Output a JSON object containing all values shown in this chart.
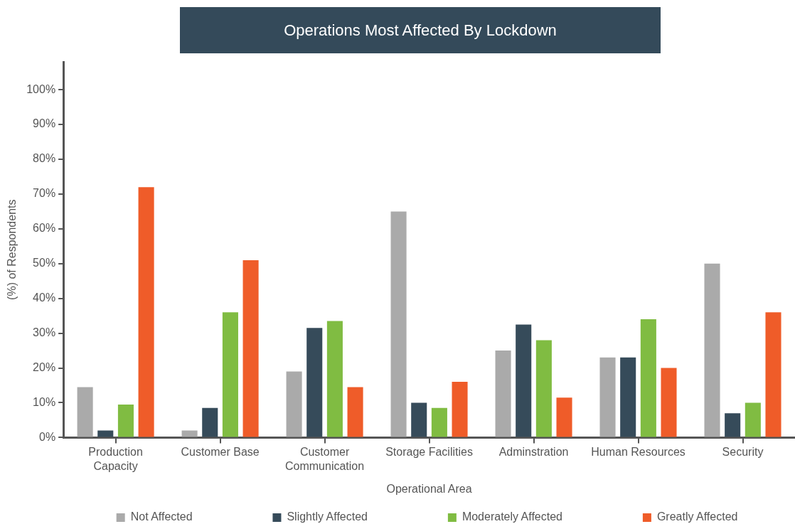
{
  "chart_data": {
    "type": "bar",
    "title": "Operations Most Affected By Lockdown",
    "xlabel": "Operational Area",
    "ylabel": "(%) of Respondents",
    "categories": [
      "Production Capacity",
      "Customer Base",
      "Customer Communication",
      "Storage Facilities",
      "Adminstration",
      "Human Resources",
      "Security"
    ],
    "series": [
      {
        "name": "Not Affected",
        "color": "#aaaaaa",
        "values": [
          14.5,
          2,
          19,
          65,
          25,
          23,
          50
        ]
      },
      {
        "name": "Slightly Affected",
        "color": "#364b5a",
        "values": [
          2,
          8.5,
          31.5,
          10,
          32.5,
          23,
          7
        ]
      },
      {
        "name": "Moderately Affected",
        "color": "#80bc42",
        "values": [
          9.5,
          36,
          33.5,
          8.5,
          28,
          34,
          10
        ]
      },
      {
        "name": "Greatly Affected",
        "color": "#ef5c29",
        "values": [
          72,
          51,
          14.5,
          16,
          11.5,
          20,
          36
        ]
      }
    ],
    "ylim": [
      0,
      108
    ],
    "yticks": [
      {
        "value": 0,
        "label": "0%"
      },
      {
        "value": 10,
        "label": "10%"
      },
      {
        "value": 20,
        "label": "20%"
      },
      {
        "value": 30,
        "label": "30%"
      },
      {
        "value": 40,
        "label": "40%"
      },
      {
        "value": 50,
        "label": "50%"
      },
      {
        "value": 60,
        "label": "60%"
      },
      {
        "value": 70,
        "label": "70%"
      },
      {
        "value": 80,
        "label": "80%"
      },
      {
        "value": 90,
        "label": "90%"
      },
      {
        "value": 100,
        "label": "100%"
      }
    ],
    "grid": false,
    "legend": "bottom"
  }
}
